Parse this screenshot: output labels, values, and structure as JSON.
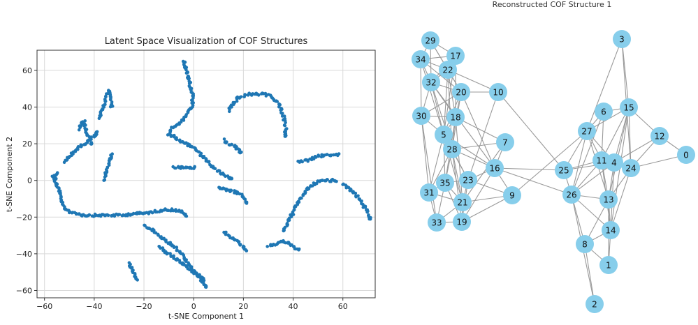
{
  "chart_data": [
    {
      "type": "scatter",
      "title": "Latent Space Visualization of COF Structures",
      "xlabel": "t-SNE Component 1",
      "ylabel": "t-SNE Component 2",
      "xlim": [
        -63,
        73
      ],
      "ylim": [
        -64,
        71
      ],
      "xticks": [
        -60,
        -40,
        -20,
        0,
        20,
        40,
        60
      ],
      "yticks": [
        -60,
        -40,
        -20,
        0,
        20,
        40,
        60
      ],
      "grid": true,
      "color": "#1f77b4",
      "clusters": [
        {
          "x": [
            -57,
            -55,
            -56,
            -54,
            -53,
            -52,
            -50,
            -47,
            -44,
            -40,
            -36,
            -32,
            -28,
            -24,
            -20,
            -16,
            -12,
            -8,
            -5,
            -3
          ],
          "y": [
            2,
            4,
            0,
            -6,
            -12,
            -15,
            -17,
            -18,
            -19,
            -19,
            -19,
            -19,
            -19,
            -18,
            -18,
            -17,
            -16,
            -16,
            -17,
            -19
          ]
        },
        {
          "x": [
            -52,
            -50,
            -48,
            -46,
            -44,
            -42,
            -40,
            -39
          ],
          "y": [
            10,
            13,
            16,
            18,
            20,
            22,
            24,
            26
          ]
        },
        {
          "x": [
            -46,
            -45,
            -44,
            -43,
            -42,
            -41
          ],
          "y": [
            28,
            31,
            32,
            26,
            22,
            20
          ]
        },
        {
          "x": [
            -38,
            -37,
            -36,
            -35,
            -34,
            -33
          ],
          "y": [
            34,
            38,
            42,
            46,
            49,
            40
          ]
        },
        {
          "x": [
            -36,
            -35,
            -34,
            -33
          ],
          "y": [
            0,
            5,
            10,
            14
          ]
        },
        {
          "x": [
            -26,
            -25,
            -24,
            -23
          ],
          "y": [
            -45,
            -48,
            -51,
            -54
          ]
        },
        {
          "x": [
            -20,
            -16,
            -12,
            -8,
            -5,
            -3,
            -1,
            2,
            4,
            5
          ],
          "y": [
            -24,
            -28,
            -32,
            -36,
            -40,
            -44,
            -48,
            -52,
            -56,
            -58
          ]
        },
        {
          "x": [
            -14,
            -12,
            -10,
            -8,
            -6,
            -4,
            -2,
            0,
            2,
            4
          ],
          "y": [
            -36,
            -38,
            -40,
            -42,
            -44,
            -46,
            -48,
            -50,
            -52,
            -54
          ]
        },
        {
          "x": [
            -4,
            -3,
            -2,
            -1,
            0,
            -1,
            -3,
            -5,
            -7,
            -9,
            -10,
            -8,
            -6,
            -3,
            0,
            3,
            6,
            9,
            12,
            15
          ],
          "y": [
            65,
            60,
            55,
            50,
            45,
            40,
            36,
            32,
            30,
            28,
            25,
            24,
            22,
            20,
            18,
            14,
            10,
            6,
            3,
            1
          ]
        },
        {
          "x": [
            -8,
            -6,
            -4,
            -2,
            0
          ],
          "y": [
            7,
            7,
            7,
            7,
            7
          ]
        },
        {
          "x": [
            14,
            16,
            18,
            20,
            22,
            25,
            28,
            31,
            34,
            36,
            37,
            37
          ],
          "y": [
            38,
            42,
            45,
            46,
            47,
            47,
            47,
            46,
            42,
            36,
            30,
            24
          ]
        },
        {
          "x": [
            12,
            14,
            16,
            18,
            19
          ],
          "y": [
            22,
            20,
            19,
            17,
            15
          ]
        },
        {
          "x": [
            10,
            13,
            16,
            19,
            21
          ],
          "y": [
            -4,
            -5,
            -6,
            -8,
            -12
          ]
        },
        {
          "x": [
            12,
            14,
            16,
            18,
            20,
            21
          ],
          "y": [
            -28,
            -30,
            -32,
            -34,
            -36,
            -38
          ]
        },
        {
          "x": [
            30,
            32,
            34,
            36,
            38,
            40,
            42
          ],
          "y": [
            -36,
            -35,
            -34,
            -33,
            -34,
            -36,
            -38
          ]
        },
        {
          "x": [
            36,
            39,
            42,
            45,
            48,
            51,
            54,
            57
          ],
          "y": [
            -28,
            -20,
            -12,
            -6,
            -2,
            0,
            0,
            0
          ]
        },
        {
          "x": [
            42,
            46,
            50,
            54,
            58
          ],
          "y": [
            10,
            11,
            13,
            14,
            14
          ]
        },
        {
          "x": [
            60,
            63,
            66,
            68,
            70,
            71
          ],
          "y": [
            -2,
            -5,
            -9,
            -13,
            -17,
            -21
          ]
        }
      ]
    },
    {
      "type": "network",
      "title": "Reconstructed COF Structure 1",
      "node_color": "#87ceeb",
      "edge_color": "#999999",
      "nodes": [
        "0",
        "1",
        "2",
        "3",
        "4",
        "5",
        "6",
        "7",
        "8",
        "9",
        "10",
        "11",
        "12",
        "13",
        "14",
        "15",
        "16",
        "17",
        "18",
        "19",
        "20",
        "21",
        "22",
        "23",
        "24",
        "25",
        "26",
        "27",
        "28",
        "29",
        "30",
        "31",
        "32",
        "33",
        "34",
        "35"
      ],
      "edges": [
        [
          "29",
          "34"
        ],
        [
          "29",
          "17"
        ],
        [
          "29",
          "22"
        ],
        [
          "29",
          "32"
        ],
        [
          "29",
          "20"
        ],
        [
          "34",
          "17"
        ],
        [
          "34",
          "22"
        ],
        [
          "34",
          "32"
        ],
        [
          "34",
          "30"
        ],
        [
          "34",
          "5"
        ],
        [
          "34",
          "20"
        ],
        [
          "17",
          "22"
        ],
        [
          "17",
          "32"
        ],
        [
          "17",
          "18"
        ],
        [
          "17",
          "5"
        ],
        [
          "22",
          "32"
        ],
        [
          "22",
          "20"
        ],
        [
          "22",
          "18"
        ],
        [
          "22",
          "5"
        ],
        [
          "22",
          "28"
        ],
        [
          "22",
          "10"
        ],
        [
          "32",
          "20"
        ],
        [
          "32",
          "30"
        ],
        [
          "32",
          "18"
        ],
        [
          "32",
          "5"
        ],
        [
          "32",
          "28"
        ],
        [
          "32",
          "16"
        ],
        [
          "20",
          "10"
        ],
        [
          "20",
          "30"
        ],
        [
          "20",
          "18"
        ],
        [
          "20",
          "5"
        ],
        [
          "20",
          "28"
        ],
        [
          "20",
          "16"
        ],
        [
          "10",
          "25"
        ],
        [
          "10",
          "23"
        ],
        [
          "30",
          "18"
        ],
        [
          "30",
          "5"
        ],
        [
          "30",
          "31"
        ],
        [
          "30",
          "33"
        ],
        [
          "18",
          "5"
        ],
        [
          "18",
          "28"
        ],
        [
          "18",
          "7"
        ],
        [
          "18",
          "35"
        ],
        [
          "18",
          "21"
        ],
        [
          "5",
          "28"
        ],
        [
          "5",
          "35"
        ],
        [
          "5",
          "31"
        ],
        [
          "5",
          "23"
        ],
        [
          "5",
          "16"
        ],
        [
          "5",
          "21"
        ],
        [
          "28",
          "35"
        ],
        [
          "28",
          "23"
        ],
        [
          "28",
          "16"
        ],
        [
          "28",
          "21"
        ],
        [
          "28",
          "19"
        ],
        [
          "28",
          "7"
        ],
        [
          "28",
          "31"
        ],
        [
          "7",
          "16"
        ],
        [
          "7",
          "21"
        ],
        [
          "16",
          "23"
        ],
        [
          "16",
          "9"
        ],
        [
          "16",
          "25"
        ],
        [
          "16",
          "26"
        ],
        [
          "16",
          "19"
        ],
        [
          "23",
          "35"
        ],
        [
          "23",
          "21"
        ],
        [
          "23",
          "19"
        ],
        [
          "23",
          "9"
        ],
        [
          "35",
          "31"
        ],
        [
          "35",
          "21"
        ],
        [
          "35",
          "33"
        ],
        [
          "35",
          "19"
        ],
        [
          "31",
          "33"
        ],
        [
          "31",
          "21"
        ],
        [
          "21",
          "33"
        ],
        [
          "21",
          "19"
        ],
        [
          "21",
          "9"
        ],
        [
          "33",
          "19"
        ],
        [
          "19",
          "9"
        ],
        [
          "9",
          "27"
        ],
        [
          "25",
          "26"
        ],
        [
          "25",
          "11"
        ],
        [
          "25",
          "4"
        ],
        [
          "25",
          "27"
        ],
        [
          "26",
          "11"
        ],
        [
          "26",
          "4"
        ],
        [
          "26",
          "13"
        ],
        [
          "26",
          "14"
        ],
        [
          "26",
          "8"
        ],
        [
          "26",
          "6"
        ],
        [
          "26",
          "27"
        ],
        [
          "26",
          "2"
        ],
        [
          "27",
          "6"
        ],
        [
          "27",
          "15"
        ],
        [
          "27",
          "11"
        ],
        [
          "27",
          "4"
        ],
        [
          "27",
          "13"
        ],
        [
          "6",
          "15"
        ],
        [
          "6",
          "11"
        ],
        [
          "15",
          "3"
        ],
        [
          "15",
          "12"
        ],
        [
          "15",
          "11"
        ],
        [
          "15",
          "4"
        ],
        [
          "15",
          "24"
        ],
        [
          "15",
          "13"
        ],
        [
          "15",
          "14"
        ],
        [
          "3",
          "27"
        ],
        [
          "3",
          "24"
        ],
        [
          "12",
          "0"
        ],
        [
          "12",
          "4"
        ],
        [
          "12",
          "24"
        ],
        [
          "0",
          "24"
        ],
        [
          "11",
          "4"
        ],
        [
          "11",
          "24"
        ],
        [
          "11",
          "13"
        ],
        [
          "11",
          "14"
        ],
        [
          "4",
          "24"
        ],
        [
          "4",
          "13"
        ],
        [
          "4",
          "14"
        ],
        [
          "24",
          "13"
        ],
        [
          "24",
          "14"
        ],
        [
          "13",
          "14"
        ],
        [
          "13",
          "8"
        ],
        [
          "13",
          "1"
        ],
        [
          "14",
          "8"
        ],
        [
          "14",
          "1"
        ],
        [
          "8",
          "2"
        ],
        [
          "8",
          "1"
        ]
      ]
    }
  ]
}
